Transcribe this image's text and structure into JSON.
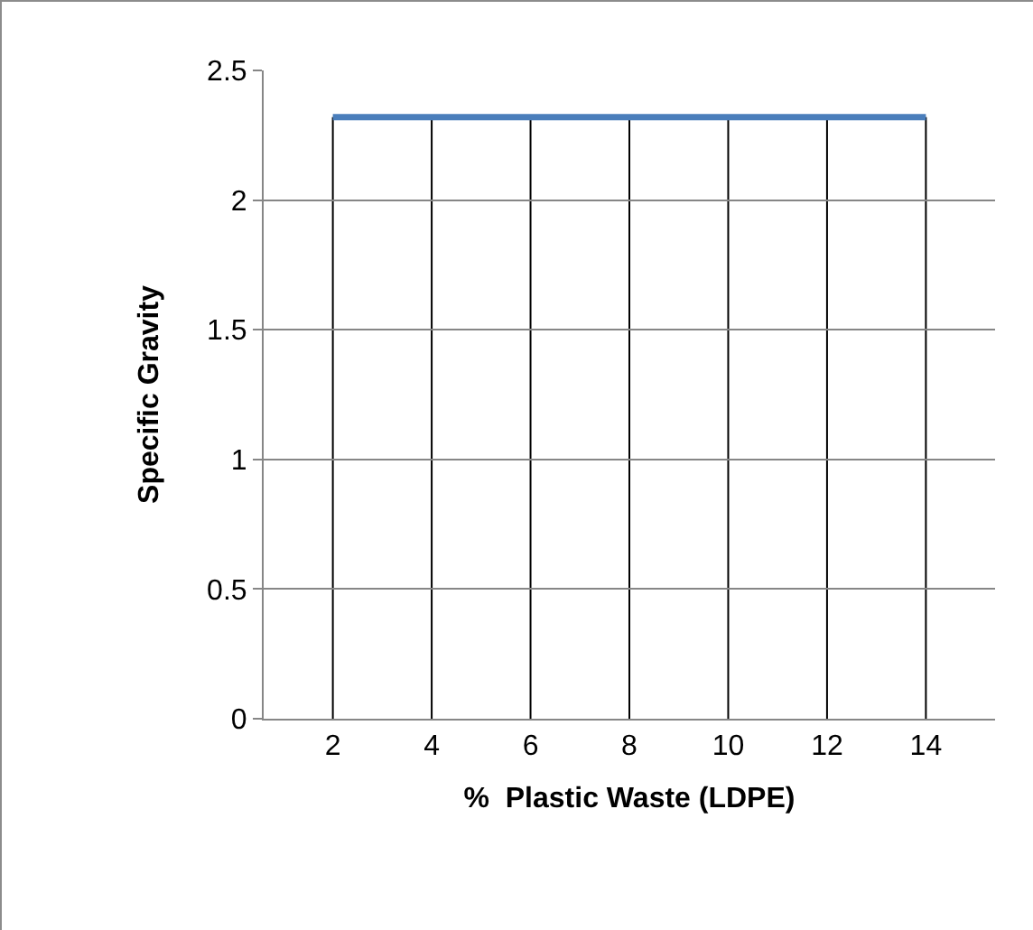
{
  "chart_data": {
    "type": "line",
    "xlabel": "%  Plastic Waste (LDPE)",
    "ylabel": "Specific Gravity",
    "categories": [
      "2",
      "4",
      "6",
      "8",
      "10",
      "12",
      "14"
    ],
    "series": [
      {
        "color": "#4a7ebb",
        "values": [
          2.32,
          2.32,
          2.32,
          2.32,
          2.32,
          2.32,
          2.32
        ]
      }
    ],
    "ylim": [
      0,
      2.5
    ],
    "yticks": [
      0,
      0.5,
      1,
      1.5,
      2,
      2.5
    ],
    "grid": true,
    "marker": "none",
    "line_style": "solid"
  }
}
